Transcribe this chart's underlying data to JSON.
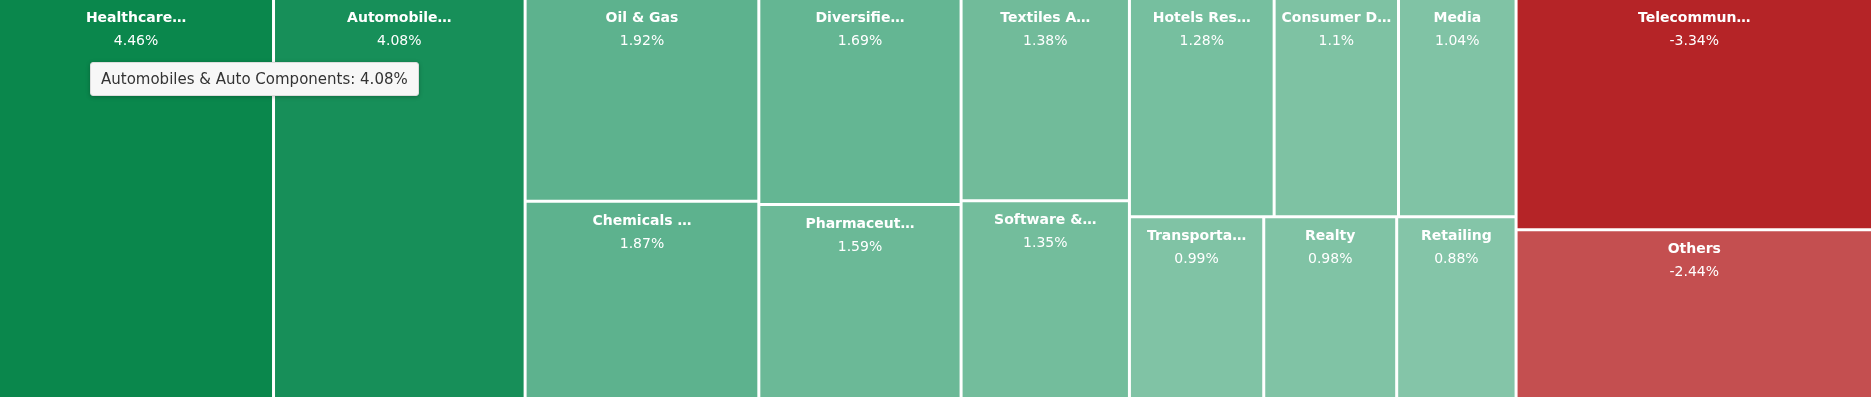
{
  "chart_data": {
    "type": "other",
    "categories": [
      "Healthcare…",
      "Automobile…",
      "Oil & Gas",
      "Chemicals …",
      "Diversifie…",
      "Pharmaceut…",
      "Textiles A…",
      "Software &…",
      "Hotels Res…",
      "Consumer D…",
      "Media",
      "Transporta…",
      "Realty",
      "Retailing",
      "Telecommun…",
      "Others"
    ],
    "values": [
      4.46,
      4.08,
      1.92,
      1.87,
      1.69,
      1.59,
      1.38,
      1.35,
      1.28,
      1.1,
      1.04,
      0.99,
      0.98,
      0.88,
      -3.34,
      -2.44
    ],
    "value_labels": [
      "4.46%",
      "4.08%",
      "1.92%",
      "1.87%",
      "1.69%",
      "1.59%",
      "1.38%",
      "1.35%",
      "1.28%",
      "1.1%",
      "1.04%",
      "0.99%",
      "0.98%",
      "0.88%",
      "-3.34%",
      "-2.44%"
    ],
    "colors": [
      "#0a874c",
      "#178f59",
      "#5db28e",
      "#5db28e",
      "#64b693",
      "#6bb997",
      "#71bb9a",
      "#73bd9c",
      "#76bf9f",
      "#7ec2a3",
      "#80c3a5",
      "#80c3a5",
      "#80c3a5",
      "#84c5a8",
      "#b52427",
      "#c44f50"
    ],
    "annotations": [
      "Automobiles & Auto Components: 4.08%"
    ]
  }
}
